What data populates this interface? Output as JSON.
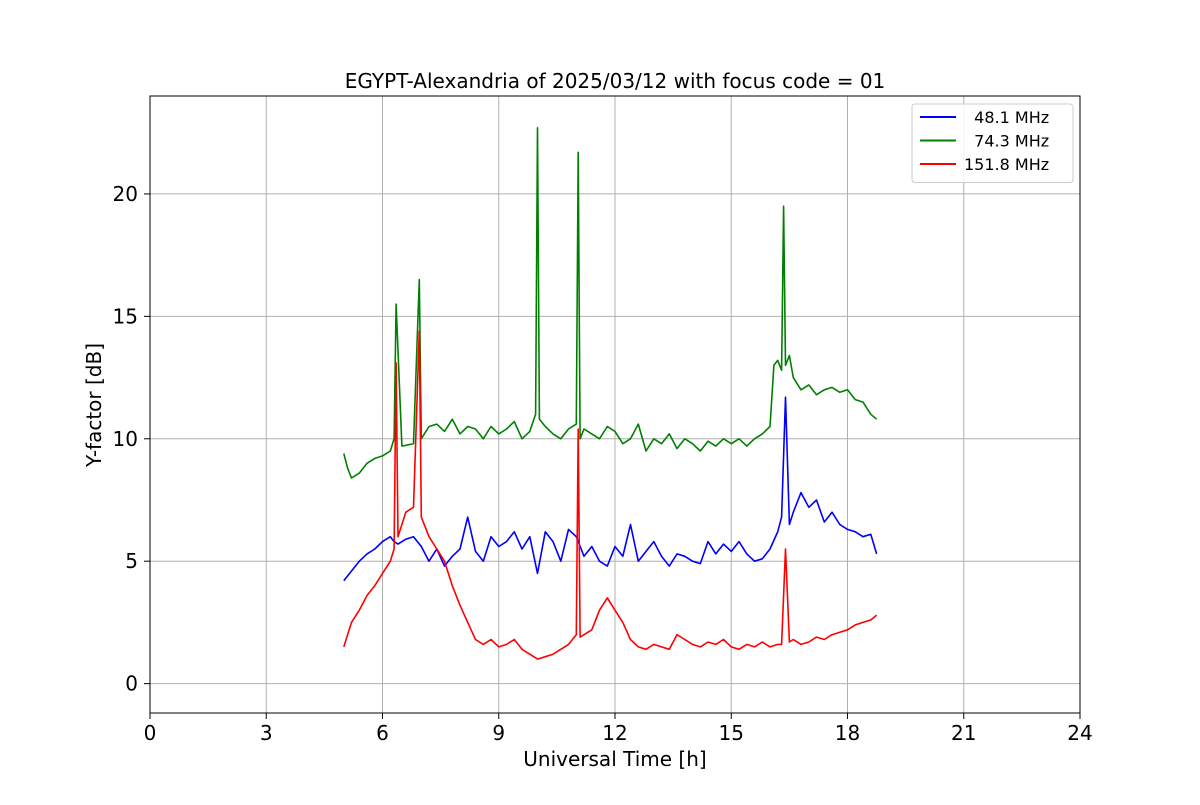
{
  "chart_data": {
    "type": "line",
    "title": "EGYPT-Alexandria of 2025/03/12 with focus code = 01",
    "xlabel": "Universal Time [h]",
    "ylabel": "Y-factor [dB]",
    "xlim": [
      0,
      24
    ],
    "ylim": [
      -1.2,
      24
    ],
    "xticks": [
      0,
      3,
      6,
      9,
      12,
      15,
      18,
      21,
      24
    ],
    "yticks": [
      0,
      5,
      10,
      15,
      20
    ],
    "grid": true,
    "legend_position": "top-right",
    "series": [
      {
        "name": "  48.1 MHz",
        "color": "#0000ff",
        "x": [
          5.0,
          5.2,
          5.4,
          5.6,
          5.8,
          6.0,
          6.2,
          6.3,
          6.4,
          6.6,
          6.8,
          7.0,
          7.2,
          7.4,
          7.6,
          7.8,
          8.0,
          8.2,
          8.4,
          8.6,
          8.8,
          9.0,
          9.2,
          9.4,
          9.6,
          9.8,
          10.0,
          10.2,
          10.4,
          10.6,
          10.8,
          11.0,
          11.2,
          11.4,
          11.6,
          11.8,
          12.0,
          12.2,
          12.4,
          12.6,
          12.8,
          13.0,
          13.2,
          13.4,
          13.6,
          13.8,
          14.0,
          14.2,
          14.4,
          14.6,
          14.8,
          15.0,
          15.2,
          15.4,
          15.6,
          15.8,
          16.0,
          16.2,
          16.3,
          16.4,
          16.5,
          16.6,
          16.8,
          17.0,
          17.2,
          17.4,
          17.6,
          17.8,
          18.0,
          18.2,
          18.4,
          18.6,
          18.75
        ],
        "y": [
          4.2,
          4.6,
          5.0,
          5.3,
          5.5,
          5.8,
          6.0,
          5.8,
          5.7,
          5.9,
          6.0,
          5.6,
          5.0,
          5.5,
          4.8,
          5.2,
          5.5,
          6.8,
          5.4,
          5.0,
          6.0,
          5.6,
          5.8,
          6.2,
          5.5,
          6.0,
          4.5,
          6.2,
          5.8,
          5.0,
          6.3,
          6.0,
          5.2,
          5.6,
          5.0,
          4.8,
          5.6,
          5.2,
          6.5,
          5.0,
          5.4,
          5.8,
          5.2,
          4.8,
          5.3,
          5.2,
          5.0,
          4.9,
          5.8,
          5.3,
          5.7,
          5.4,
          5.8,
          5.3,
          5.0,
          5.1,
          5.5,
          6.2,
          6.8,
          11.7,
          6.5,
          7.0,
          7.8,
          7.2,
          7.5,
          6.6,
          7.0,
          6.5,
          6.3,
          6.2,
          6.0,
          6.1,
          5.3
        ]
      },
      {
        "name": "  74.3 MHz",
        "color": "#008000",
        "x": [
          5.0,
          5.1,
          5.2,
          5.4,
          5.6,
          5.8,
          6.0,
          6.2,
          6.3,
          6.35,
          6.5,
          6.8,
          6.95,
          7.0,
          7.2,
          7.4,
          7.6,
          7.8,
          8.0,
          8.2,
          8.4,
          8.6,
          8.8,
          9.0,
          9.2,
          9.4,
          9.6,
          9.8,
          9.95,
          10.0,
          10.05,
          10.2,
          10.4,
          10.6,
          10.8,
          11.0,
          11.05,
          11.1,
          11.2,
          11.4,
          11.6,
          11.8,
          12.0,
          12.2,
          12.4,
          12.6,
          12.8,
          13.0,
          13.2,
          13.4,
          13.6,
          13.8,
          14.0,
          14.2,
          14.4,
          14.6,
          14.8,
          15.0,
          15.2,
          15.4,
          15.6,
          15.8,
          16.0,
          16.1,
          16.2,
          16.3,
          16.35,
          16.4,
          16.5,
          16.6,
          16.8,
          17.0,
          17.2,
          17.4,
          17.6,
          17.8,
          18.0,
          18.2,
          18.4,
          18.6,
          18.75
        ],
        "y": [
          9.4,
          8.8,
          8.4,
          8.6,
          9.0,
          9.2,
          9.3,
          9.5,
          10.0,
          15.5,
          9.7,
          9.8,
          16.5,
          10.0,
          10.5,
          10.6,
          10.3,
          10.8,
          10.2,
          10.5,
          10.4,
          10.0,
          10.5,
          10.2,
          10.4,
          10.7,
          10.0,
          10.3,
          11.0,
          22.7,
          10.8,
          10.5,
          10.2,
          10.0,
          10.4,
          10.6,
          21.7,
          10.0,
          10.4,
          10.2,
          10.0,
          10.5,
          10.3,
          9.8,
          10.0,
          10.6,
          9.5,
          10.0,
          9.8,
          10.2,
          9.6,
          10.0,
          9.8,
          9.5,
          9.9,
          9.7,
          10.0,
          9.8,
          10.0,
          9.7,
          10.0,
          10.2,
          10.5,
          13.0,
          13.2,
          12.8,
          19.5,
          13.0,
          13.4,
          12.5,
          12.0,
          12.2,
          11.8,
          12.0,
          12.1,
          11.9,
          12.0,
          11.6,
          11.5,
          11.0,
          10.8
        ]
      },
      {
        "name": "151.8 MHz",
        "color": "#ff0000",
        "x": [
          5.0,
          5.2,
          5.4,
          5.6,
          5.8,
          6.0,
          6.2,
          6.3,
          6.35,
          6.4,
          6.6,
          6.8,
          6.95,
          7.0,
          7.2,
          7.4,
          7.6,
          7.8,
          8.0,
          8.2,
          8.4,
          8.6,
          8.8,
          9.0,
          9.2,
          9.4,
          9.6,
          9.8,
          10.0,
          10.2,
          10.4,
          10.6,
          10.8,
          11.0,
          11.05,
          11.1,
          11.2,
          11.4,
          11.6,
          11.8,
          12.0,
          12.2,
          12.4,
          12.6,
          12.8,
          13.0,
          13.2,
          13.4,
          13.6,
          13.8,
          14.0,
          14.2,
          14.4,
          14.6,
          14.8,
          15.0,
          15.2,
          15.4,
          15.6,
          15.8,
          16.0,
          16.2,
          16.3,
          16.4,
          16.5,
          16.6,
          16.8,
          17.0,
          17.2,
          17.4,
          17.6,
          17.8,
          18.0,
          18.2,
          18.4,
          18.6,
          18.75
        ],
        "y": [
          1.5,
          2.5,
          3.0,
          3.6,
          4.0,
          4.5,
          5.0,
          5.5,
          13.1,
          6.0,
          7.0,
          7.2,
          14.4,
          6.8,
          6.0,
          5.5,
          5.0,
          4.0,
          3.2,
          2.5,
          1.8,
          1.6,
          1.8,
          1.5,
          1.6,
          1.8,
          1.4,
          1.2,
          1.0,
          1.1,
          1.2,
          1.4,
          1.6,
          2.0,
          10.4,
          1.9,
          2.0,
          2.2,
          3.0,
          3.5,
          3.0,
          2.5,
          1.8,
          1.5,
          1.4,
          1.6,
          1.5,
          1.4,
          2.0,
          1.8,
          1.6,
          1.5,
          1.7,
          1.6,
          1.8,
          1.5,
          1.4,
          1.6,
          1.5,
          1.7,
          1.5,
          1.6,
          1.6,
          5.5,
          1.7,
          1.8,
          1.6,
          1.7,
          1.9,
          1.8,
          2.0,
          2.1,
          2.2,
          2.4,
          2.5,
          2.6,
          2.8
        ]
      }
    ]
  }
}
